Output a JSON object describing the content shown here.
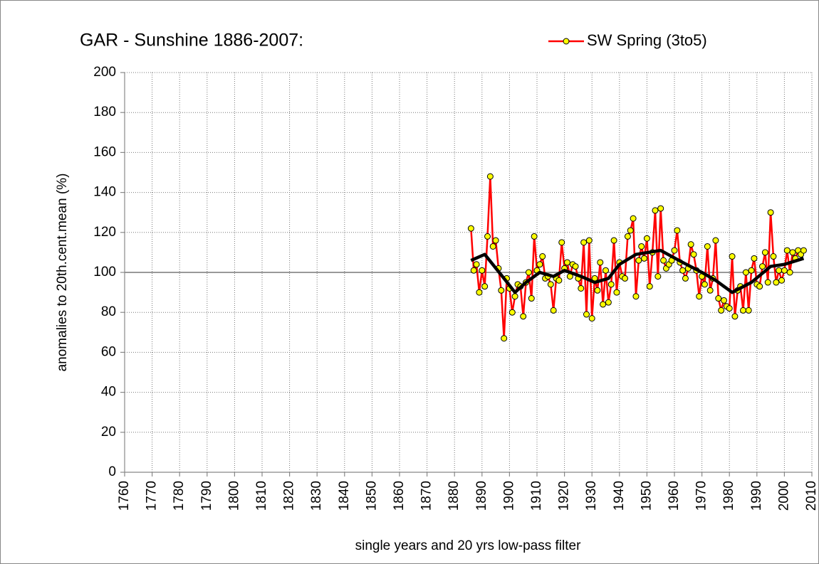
{
  "chart_data": {
    "type": "line",
    "title": "GAR - Sunshine 1886-2007:",
    "y_label": "anomalies to 20th.cent.mean (%)",
    "x_label": "single years and 20 yrs low-pass filter",
    "xlim": [
      1760,
      2010
    ],
    "xticks": [
      1760,
      1770,
      1780,
      1790,
      1800,
      1810,
      1820,
      1830,
      1840,
      1850,
      1860,
      1870,
      1880,
      1890,
      1900,
      1910,
      1920,
      1930,
      1940,
      1950,
      1960,
      1970,
      1980,
      1990,
      2000,
      2010
    ],
    "ylim": [
      0,
      200
    ],
    "yticks": [
      0,
      20,
      40,
      60,
      80,
      100,
      120,
      140,
      160,
      180,
      200
    ],
    "grid": true,
    "reference_line": 100,
    "legend": "top-right",
    "series": [
      {
        "name": "SW Spring (3to5)",
        "color": "#ff0000",
        "marker_color": "#ffff00",
        "x": [
          1886,
          1887,
          1888,
          1889,
          1890,
          1891,
          1892,
          1893,
          1894,
          1895,
          1896,
          1897,
          1898,
          1899,
          1900,
          1901,
          1902,
          1903,
          1904,
          1905,
          1906,
          1907,
          1908,
          1909,
          1910,
          1911,
          1912,
          1913,
          1914,
          1915,
          1916,
          1917,
          1918,
          1919,
          1920,
          1921,
          1922,
          1923,
          1924,
          1925,
          1926,
          1927,
          1928,
          1929,
          1930,
          1931,
          1932,
          1933,
          1934,
          1935,
          1936,
          1937,
          1938,
          1939,
          1940,
          1941,
          1942,
          1943,
          1944,
          1945,
          1946,
          1947,
          1948,
          1949,
          1950,
          1951,
          1952,
          1953,
          1954,
          1955,
          1956,
          1957,
          1958,
          1959,
          1960,
          1961,
          1962,
          1963,
          1964,
          1965,
          1966,
          1967,
          1968,
          1969,
          1970,
          1971,
          1972,
          1973,
          1974,
          1975,
          1976,
          1977,
          1978,
          1979,
          1980,
          1981,
          1982,
          1983,
          1984,
          1985,
          1986,
          1987,
          1988,
          1989,
          1990,
          1991,
          1992,
          1993,
          1994,
          1995,
          1996,
          1997,
          1998,
          1999,
          2000,
          2001,
          2002,
          2003,
          2004,
          2005,
          2006,
          2007
        ],
        "values": [
          122,
          101,
          104,
          90,
          101,
          93,
          118,
          148,
          113,
          116,
          102,
          91,
          67,
          97,
          92,
          80,
          88,
          94,
          93,
          78,
          95,
          100,
          87,
          118,
          101,
          104,
          108,
          97,
          98,
          94,
          81,
          97,
          96,
          115,
          102,
          105,
          98,
          104,
          103,
          97,
          92,
          115,
          79,
          116,
          77,
          97,
          91,
          105,
          84,
          101,
          85,
          94,
          116,
          90,
          105,
          98,
          97,
          118,
          121,
          127,
          88,
          106,
          113,
          107,
          117,
          93,
          110,
          131,
          98,
          132,
          106,
          102,
          104,
          106,
          111,
          121,
          105,
          101,
          97,
          102,
          114,
          109,
          101,
          88,
          98,
          94,
          113,
          91,
          97,
          116,
          87,
          81,
          86,
          83,
          82,
          108,
          78,
          91,
          93,
          81,
          100,
          81,
          101,
          107,
          94,
          93,
          103,
          110,
          95,
          130,
          108,
          95,
          101,
          96,
          101,
          111,
          100,
          110,
          107,
          111,
          109,
          111
        ]
      }
    ],
    "filter": {
      "color": "#000000",
      "x": [
        1886,
        1891,
        1898,
        1902,
        1906,
        1911,
        1916,
        1920,
        1926,
        1931,
        1936,
        1940,
        1946,
        1955,
        1963,
        1970,
        1975,
        1981,
        1988,
        1995,
        2000,
        2007
      ],
      "values": [
        106,
        109,
        97,
        90,
        95,
        100,
        98,
        101,
        98,
        95,
        97,
        104,
        109,
        111,
        105,
        100,
        96,
        90,
        95,
        103,
        104,
        107
      ]
    }
  }
}
